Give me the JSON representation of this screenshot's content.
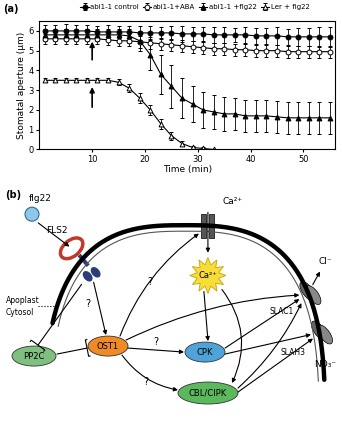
{
  "chart_data": {
    "type": "line",
    "panel_label": "(a)",
    "x_label": "Time (min)",
    "y_label": "Stomatal aperture (µm)",
    "x": [
      1,
      3,
      5,
      7,
      9,
      11,
      13,
      15,
      17,
      19,
      21,
      23,
      25,
      27,
      29,
      31,
      33,
      35,
      37,
      39,
      41,
      43,
      45,
      47,
      49,
      51,
      53,
      55
    ],
    "xlim": [
      0,
      56
    ],
    "xticks": [
      10,
      20,
      30,
      40,
      50
    ],
    "ylim": [
      0,
      6.5
    ],
    "yticks": [
      0,
      1,
      2,
      3,
      4,
      5,
      6
    ],
    "grid": false,
    "legend": "top",
    "series": [
      {
        "name": "abi1-1 control",
        "color": "#000000",
        "marker": "circle",
        "line_style": "solid",
        "values": [
          6.0,
          6.0,
          6.0,
          6.0,
          6.0,
          5.95,
          5.95,
          5.95,
          5.95,
          5.9,
          5.9,
          5.9,
          5.9,
          5.85,
          5.85,
          5.85,
          5.8,
          5.8,
          5.8,
          5.8,
          5.75,
          5.75,
          5.75,
          5.7,
          5.7,
          5.7,
          5.7,
          5.7
        ],
        "errors": [
          0.3,
          0.3,
          0.35,
          0.3,
          0.3,
          0.3,
          0.35,
          0.3,
          0.3,
          0.35,
          0.35,
          0.3,
          0.35,
          0.4,
          0.35,
          0.35,
          0.4,
          0.4,
          0.35,
          0.4,
          0.4,
          0.4,
          0.45,
          0.4,
          0.45,
          0.45,
          0.5,
          0.5
        ]
      },
      {
        "name": "abi1-1+ABA",
        "color": "#000000",
        "marker": "open_circle",
        "line_style": "solid",
        "values": [
          5.6,
          5.6,
          5.6,
          5.6,
          5.6,
          5.6,
          5.55,
          5.5,
          5.5,
          5.45,
          5.4,
          5.35,
          5.3,
          5.25,
          5.2,
          5.15,
          5.1,
          5.1,
          5.05,
          5.05,
          5.0,
          5.0,
          5.0,
          4.95,
          4.95,
          4.95,
          4.95,
          4.95
        ],
        "errors": [
          0.25,
          0.25,
          0.25,
          0.25,
          0.25,
          0.25,
          0.25,
          0.25,
          0.25,
          0.3,
          0.3,
          0.3,
          0.3,
          0.3,
          0.3,
          0.3,
          0.3,
          0.3,
          0.3,
          0.3,
          0.3,
          0.3,
          0.3,
          0.3,
          0.3,
          0.3,
          0.3,
          0.3
        ]
      },
      {
        "name": "abi1-1 +flg22",
        "color": "#000000",
        "marker": "triangle",
        "line_style": "solid",
        "values": [
          5.8,
          5.8,
          5.8,
          5.8,
          5.8,
          5.8,
          5.8,
          5.8,
          5.75,
          5.5,
          4.8,
          3.8,
          3.2,
          2.6,
          2.3,
          2.0,
          1.9,
          1.8,
          1.8,
          1.7,
          1.7,
          1.7,
          1.65,
          1.6,
          1.6,
          1.6,
          1.6,
          1.6
        ],
        "errors": [
          0.3,
          0.3,
          0.3,
          0.3,
          0.3,
          0.3,
          0.3,
          0.3,
          0.35,
          0.5,
          0.8,
          1.0,
          1.1,
          1.0,
          0.9,
          0.9,
          0.85,
          0.85,
          0.8,
          0.8,
          0.8,
          0.8,
          0.8,
          0.8,
          0.8,
          0.8,
          0.8,
          0.8
        ]
      },
      {
        "name": "Ler + flg22",
        "color": "#000000",
        "marker": "open_triangle",
        "line_style": "solid",
        "values": [
          3.5,
          3.5,
          3.5,
          3.5,
          3.5,
          3.5,
          3.5,
          3.4,
          3.1,
          2.6,
          2.0,
          1.3,
          0.7,
          0.3,
          0.1,
          0.05,
          0.0,
          null,
          null,
          null,
          null,
          null,
          null,
          null,
          null,
          null,
          null,
          null
        ],
        "errors": [
          0.1,
          0.1,
          0.1,
          0.1,
          0.1,
          0.1,
          0.1,
          0.15,
          0.2,
          0.25,
          0.25,
          0.25,
          0.2,
          0.15,
          0.1,
          0.05,
          0.0,
          null,
          null,
          null,
          null,
          null,
          null,
          null,
          null,
          null,
          null,
          null
        ]
      }
    ],
    "arrows": [
      {
        "x": 10,
        "y_from": 4.4,
        "y_to": 5.6
      },
      {
        "x": 10,
        "y_from": 2.0,
        "y_to": 3.3
      }
    ]
  },
  "diagram": {
    "panel_label": "(b)",
    "nodes": [
      "flg22",
      "FLS2",
      "Apoplast",
      "Cytosol",
      "Ca²⁺",
      "Ca²⁺",
      "PP2C",
      "OST1",
      "CPK",
      "CBL/CIPK",
      "SLAC1",
      "SLAH3",
      "Cl⁻",
      "NO₃⁻"
    ],
    "unknown_mark": "?"
  }
}
